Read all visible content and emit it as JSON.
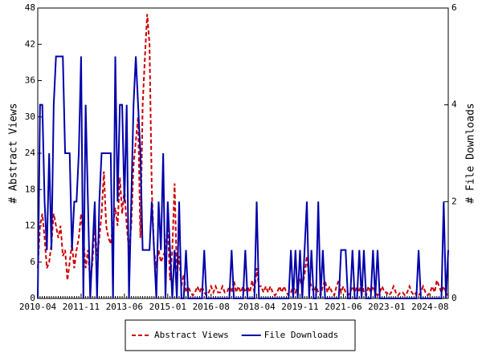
{
  "chart_data": {
    "type": "line",
    "y_label": "# Abstract Views",
    "y2_label": "# File Downloads",
    "categories": [
      "2010-04",
      null,
      null,
      null,
      null,
      null,
      null,
      null,
      null,
      null,
      null,
      null,
      null,
      null,
      null,
      null,
      null,
      null,
      null,
      "2011-11",
      null,
      null,
      null,
      null,
      null,
      null,
      null,
      null,
      null,
      null,
      null,
      null,
      null,
      null,
      null,
      null,
      null,
      null,
      "2013-06",
      null,
      null,
      null,
      null,
      null,
      null,
      null,
      null,
      null,
      null,
      null,
      null,
      null,
      null,
      null,
      null,
      null,
      null,
      "2015-01",
      null,
      null,
      null,
      null,
      null,
      null,
      null,
      null,
      null,
      null,
      null,
      null,
      null,
      null,
      null,
      null,
      null,
      null,
      "2016-08",
      null,
      null,
      null,
      null,
      null,
      null,
      null,
      null,
      null,
      null,
      null,
      null,
      null,
      null,
      null,
      null,
      null,
      null,
      null,
      "2018-04",
      null,
      null,
      null,
      null,
      null,
      null,
      null,
      null,
      null,
      null,
      null,
      null,
      null,
      null,
      null,
      null,
      null,
      null,
      "2019-11",
      null,
      null,
      null,
      null,
      null,
      null,
      null,
      null,
      null,
      null,
      null,
      null,
      null,
      null,
      null,
      null,
      null,
      null,
      "2021-06",
      null,
      null,
      null,
      null,
      null,
      null,
      null,
      null,
      null,
      null,
      null,
      null,
      null,
      null,
      null,
      null,
      null,
      null,
      "2023-01",
      null,
      null,
      null,
      null,
      null,
      null,
      null,
      null,
      null,
      null,
      null,
      null,
      null,
      null,
      null,
      null,
      null,
      null,
      "2024-08",
      null,
      null,
      null,
      null,
      null,
      null,
      null,
      null
    ],
    "series": [
      {
        "name": "Abstract Views",
        "color": "#cc0000",
        "dash": true,
        "values": [
          5,
          12,
          14,
          10,
          5,
          6,
          9,
          14,
          12,
          10,
          12,
          7,
          8,
          3,
          6,
          9,
          5,
          8,
          10,
          14,
          10,
          5,
          8,
          3,
          6,
          12,
          7,
          10,
          14,
          21,
          12,
          10,
          9,
          12,
          15,
          12,
          20,
          14,
          18,
          12,
          8,
          12,
          22,
          26,
          30,
          10,
          32,
          40,
          47,
          42,
          18,
          8,
          5,
          8,
          6,
          7,
          8,
          12,
          3,
          8,
          19,
          4,
          7,
          2,
          4,
          1,
          2,
          1,
          0.5,
          1,
          2,
          1,
          2,
          1,
          0.5,
          1,
          2,
          1,
          2,
          1,
          1,
          2,
          1,
          1,
          2,
          1,
          3,
          1,
          2,
          1,
          2,
          1,
          2,
          1,
          3,
          1,
          5,
          2,
          2,
          1,
          2,
          1,
          2,
          1,
          0.5,
          1,
          2,
          1,
          2,
          1,
          0.5,
          1,
          2,
          1,
          2,
          3,
          2,
          4,
          7,
          3,
          2,
          1,
          2,
          1,
          0.5,
          2,
          3,
          1,
          2,
          1,
          0.5,
          2,
          3,
          1,
          2,
          1,
          0.5,
          1,
          2,
          1,
          2,
          1,
          3,
          1,
          0.5,
          2,
          1,
          2,
          1,
          0.5,
          1,
          2,
          1,
          1,
          0.5,
          1,
          2,
          1,
          0.5,
          1,
          1,
          0.5,
          1,
          2,
          1,
          0.5,
          1,
          0.5,
          1,
          2,
          1,
          0.5,
          1,
          2,
          1,
          3,
          2,
          1,
          2,
          1,
          0.5
        ]
      },
      {
        "name": "File Downloads",
        "color": "#0000aa",
        "dash": false,
        "axis": "y2",
        "values": [
          0,
          4,
          4,
          2,
          1,
          3,
          1,
          4,
          5,
          5,
          5,
          5,
          3,
          3,
          3,
          1,
          2,
          2,
          3,
          5,
          0,
          4,
          2,
          0,
          1,
          2,
          0,
          2,
          3,
          3,
          3,
          3,
          3,
          0,
          5,
          2,
          4,
          4,
          2,
          4,
          0,
          2,
          4,
          5,
          4,
          3,
          1,
          1,
          1,
          1,
          2,
          1,
          0,
          2,
          1,
          3,
          0,
          2,
          1,
          0,
          1,
          0,
          2,
          0,
          0,
          1,
          0,
          0,
          0,
          0,
          0,
          0,
          0,
          1,
          0,
          0,
          0,
          0,
          0,
          0,
          0,
          0,
          0,
          0,
          0,
          1,
          0,
          0,
          0,
          0,
          0,
          1,
          0,
          0,
          0,
          0,
          2,
          0,
          0,
          0,
          0,
          0,
          0,
          0,
          0,
          0,
          0,
          0,
          0,
          0,
          0,
          1,
          0,
          1,
          0,
          1,
          0,
          1,
          2,
          0,
          1,
          0,
          0,
          2,
          0,
          1,
          0,
          0,
          0,
          0,
          0,
          0,
          0,
          1,
          1,
          1,
          0,
          0,
          1,
          0,
          0,
          1,
          0,
          1,
          0,
          0,
          0,
          1,
          0,
          1,
          0,
          0,
          0,
          0,
          0,
          0,
          0,
          0,
          0,
          0,
          0,
          0,
          0,
          0,
          0,
          0,
          0,
          1,
          0,
          0,
          0,
          0,
          0,
          0,
          0,
          0,
          0,
          0,
          2,
          0,
          1
        ]
      }
    ],
    "ylim": [
      0,
      48
    ],
    "yticks": [
      0,
      6,
      12,
      18,
      24,
      30,
      36,
      42,
      48
    ],
    "y2lim": [
      0,
      6
    ],
    "y2ticks": [
      0,
      2,
      4,
      6
    ],
    "legend": "bottom"
  }
}
